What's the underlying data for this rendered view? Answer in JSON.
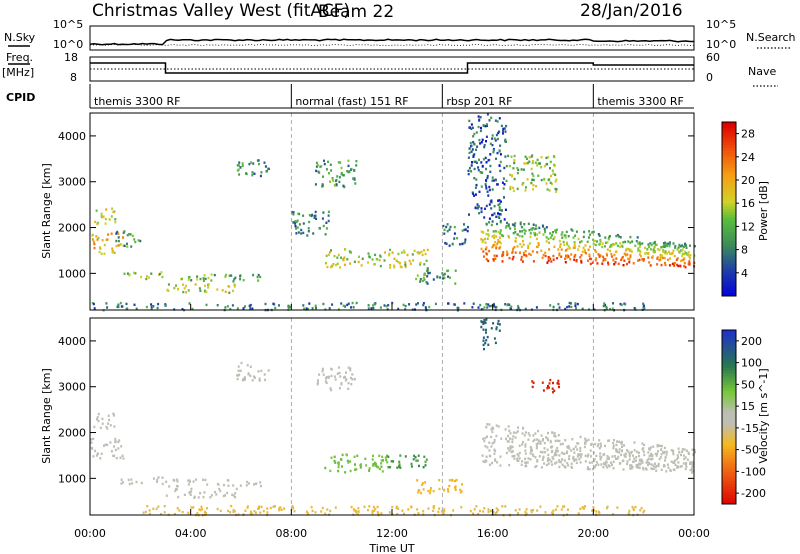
{
  "header": {
    "station": "Christmas Valley West (fitACF)",
    "beam": "Beam 22",
    "date": "28/Jan/2016"
  },
  "left_labels": {
    "nsky": "N.Sky",
    "freq_line1": "Freq.",
    "freq_line2": "[MHz]",
    "cpid": "CPID"
  },
  "right_labels": {
    "nsearch": "N.Search",
    "nave": "Nave"
  },
  "noise_axis": {
    "left_top": "10^5",
    "left_bottom": "10^0",
    "right_top": "10^5",
    "right_bottom": "10^0"
  },
  "freq_axis": {
    "left_top": "18",
    "left_bottom": "8",
    "right_top": "60",
    "right_bottom": "0"
  },
  "cpid_blocks": [
    {
      "label": "themis 3300 RF",
      "start_h": 0,
      "end_h": 8
    },
    {
      "label": "normal (fast) 151 RF",
      "start_h": 8,
      "end_h": 14
    },
    {
      "label": "rbsp 201 RF",
      "start_h": 14,
      "end_h": 20
    },
    {
      "label": "themis 3300 RF",
      "start_h": 20,
      "end_h": 24
    }
  ],
  "chart_data": [
    {
      "type": "heatmap",
      "panel": "power",
      "ylabel": "Slant Range [km]",
      "y_ticks": [
        "1000",
        "2000",
        "3000",
        "4000"
      ],
      "ylim": [
        200,
        4500
      ],
      "xlim": [
        0,
        24
      ],
      "colorbar": {
        "label": "Power [dB]",
        "ticks": [
          "4",
          "8",
          "12",
          "16",
          "20",
          "24",
          "28"
        ],
        "range": [
          0,
          30
        ]
      },
      "regions": [
        {
          "t0": 0.0,
          "t1": 1.3,
          "r0": 1450,
          "r1": 1900,
          "value": 20
        },
        {
          "t0": 0.1,
          "t1": 1.0,
          "r0": 2100,
          "r1": 2450,
          "value": 16
        },
        {
          "t0": 1.0,
          "t1": 2.0,
          "r0": 1600,
          "r1": 1950,
          "value": 10
        },
        {
          "t0": 1.2,
          "t1": 3.0,
          "r0": 900,
          "r1": 1050,
          "value": 14
        },
        {
          "t0": 2.8,
          "t1": 6.8,
          "r0": 850,
          "r1": 1000,
          "value": 12
        },
        {
          "t0": 3.0,
          "t1": 5.8,
          "r0": 600,
          "r1": 800,
          "value": 16
        },
        {
          "t0": 5.8,
          "t1": 7.1,
          "r0": 3150,
          "r1": 3550,
          "value": 10
        },
        {
          "t0": 8.9,
          "t1": 10.6,
          "r0": 2900,
          "r1": 3500,
          "value": 10
        },
        {
          "t0": 8.0,
          "t1": 9.5,
          "r0": 1850,
          "r1": 2400,
          "value": 8
        },
        {
          "t0": 9.3,
          "t1": 13.4,
          "r0": 1150,
          "r1": 1550,
          "value": 16
        },
        {
          "t0": 12.8,
          "t1": 14.5,
          "r0": 800,
          "r1": 1150,
          "value": 10
        },
        {
          "t0": 14.0,
          "t1": 15.0,
          "r0": 1600,
          "r1": 2100,
          "value": 8
        },
        {
          "t0": 15.0,
          "t1": 16.5,
          "r0": 2200,
          "r1": 4500,
          "value": 6
        },
        {
          "t0": 16.5,
          "t1": 18.5,
          "r0": 2800,
          "r1": 3600,
          "value": 14
        },
        {
          "t0": 15.5,
          "t1": 24.0,
          "r0": 1150,
          "r1": 2250,
          "value": 22,
          "sloped": true
        },
        {
          "t0": 0.0,
          "t1": 22.0,
          "r0": 220,
          "r1": 380,
          "value": 8
        }
      ]
    },
    {
      "type": "heatmap",
      "panel": "velocity",
      "ylabel": "Slant Range [km]",
      "y_ticks": [
        "1000",
        "2000",
        "3000",
        "4000"
      ],
      "ylim": [
        200,
        4500
      ],
      "xlim": [
        0,
        24
      ],
      "x_ticks": [
        "00:00",
        "04:00",
        "08:00",
        "12:00",
        "16:00",
        "20:00",
        "00:00"
      ],
      "xlabel": "Time UT",
      "colorbar": {
        "label": "Velocity [m s^-1]",
        "ticks": [
          "200",
          "100",
          "50",
          "15",
          "-15",
          "-50",
          "-100",
          "-200"
        ],
        "range": [
          -250,
          250
        ]
      },
      "regions": [
        {
          "t0": 0.0,
          "t1": 1.3,
          "r0": 1450,
          "r1": 1900,
          "value": 0
        },
        {
          "t0": 0.1,
          "t1": 1.0,
          "r0": 2100,
          "r1": 2450,
          "value": 0
        },
        {
          "t0": 1.2,
          "t1": 3.0,
          "r0": 900,
          "r1": 1050,
          "value": 0
        },
        {
          "t0": 2.8,
          "t1": 6.8,
          "r0": 850,
          "r1": 1000,
          "value": 0
        },
        {
          "t0": 3.0,
          "t1": 5.8,
          "r0": 600,
          "r1": 800,
          "value": 0
        },
        {
          "t0": 5.8,
          "t1": 7.1,
          "r0": 3150,
          "r1": 3550,
          "value": 5
        },
        {
          "t0": 9.0,
          "t1": 10.5,
          "r0": 2950,
          "r1": 3450,
          "value": 0
        },
        {
          "t0": 9.3,
          "t1": 11.8,
          "r0": 1150,
          "r1": 1550,
          "value": 80
        },
        {
          "t0": 11.8,
          "t1": 13.4,
          "r0": 1250,
          "r1": 1550,
          "value": 120
        },
        {
          "t0": 12.8,
          "t1": 14.8,
          "r0": 700,
          "r1": 1000,
          "value": -70
        },
        {
          "t0": 15.5,
          "t1": 16.3,
          "r0": 3800,
          "r1": 4500,
          "value": 180
        },
        {
          "t0": 17.5,
          "t1": 18.6,
          "r0": 2900,
          "r1": 3200,
          "value": -220
        },
        {
          "t0": 15.5,
          "t1": 24.0,
          "r0": 1150,
          "r1": 2250,
          "value": 0,
          "sloped": true
        },
        {
          "t0": 2.0,
          "t1": 22.0,
          "r0": 220,
          "r1": 420,
          "value": -60
        }
      ]
    }
  ]
}
